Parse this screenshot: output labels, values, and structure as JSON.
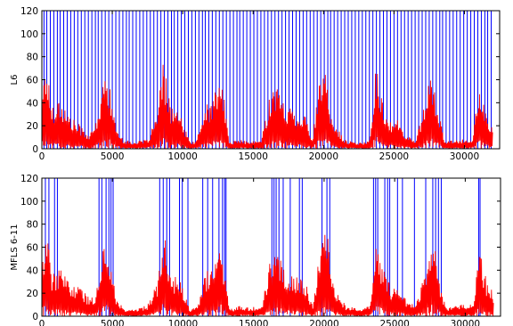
{
  "chart_data": [
    {
      "type": "line",
      "ylabel": "L6",
      "xlabel": "",
      "title": "",
      "xlim": [
        0,
        32500
      ],
      "ylim": [
        0,
        120
      ],
      "xticks": [
        0,
        5000,
        10000,
        15000,
        20000,
        25000,
        30000
      ],
      "yticks": [
        0,
        20,
        40,
        60,
        80,
        100,
        120
      ],
      "grid": false,
      "series": [
        {
          "color": "#ff0000",
          "style": "dense noisy trace",
          "points": [
            [
              0,
              50
            ],
            [
              300,
              78
            ],
            [
              700,
              38
            ],
            [
              1200,
              45
            ],
            [
              2000,
              28
            ],
            [
              2800,
              20
            ],
            [
              3400,
              12
            ],
            [
              3800,
              22
            ],
            [
              4200,
              45
            ],
            [
              4600,
              75
            ],
            [
              5200,
              22
            ],
            [
              5800,
              8
            ],
            [
              6500,
              6
            ],
            [
              7500,
              8
            ],
            [
              8200,
              30
            ],
            [
              8600,
              75
            ],
            [
              9200,
              38
            ],
            [
              9800,
              30
            ],
            [
              10500,
              6
            ],
            [
              11000,
              8
            ],
            [
              11600,
              38
            ],
            [
              12200,
              45
            ],
            [
              12700,
              68
            ],
            [
              13300,
              6
            ],
            [
              14000,
              8
            ],
            [
              14800,
              6
            ],
            [
              15600,
              8
            ],
            [
              16200,
              50
            ],
            [
              16600,
              57
            ],
            [
              17200,
              40
            ],
            [
              18000,
              35
            ],
            [
              18700,
              30
            ],
            [
              19200,
              8
            ],
            [
              19700,
              58
            ],
            [
              20200,
              68
            ],
            [
              20600,
              25
            ],
            [
              21500,
              8
            ],
            [
              22500,
              5
            ],
            [
              23300,
              8
            ],
            [
              23700,
              75
            ],
            [
              24200,
              40
            ],
            [
              24800,
              25
            ],
            [
              25300,
              25
            ],
            [
              25800,
              12
            ],
            [
              26500,
              8
            ],
            [
              27200,
              40
            ],
            [
              27700,
              72
            ],
            [
              28200,
              30
            ],
            [
              28600,
              6
            ],
            [
              29300,
              8
            ],
            [
              30000,
              8
            ],
            [
              30600,
              10
            ],
            [
              31000,
              55
            ],
            [
              31500,
              32
            ],
            [
              32000,
              20
            ]
          ]
        },
        {
          "color": "#0000ff",
          "style": "vertical event lines 0 to 120",
          "events": [
            150,
            350,
            600,
            850,
            1100,
            1300,
            1550,
            1800,
            2050,
            2300,
            2550,
            2800,
            3050,
            3300,
            3550,
            3800,
            4000,
            4250,
            4500,
            4750,
            5000,
            5250,
            5500,
            5750,
            6000,
            6200,
            6450,
            6700,
            6950,
            7200,
            7450,
            7700,
            7950,
            8200,
            8450,
            8700,
            8950,
            9200,
            9400,
            9650,
            9900,
            10150,
            10400,
            10650,
            10900,
            11150,
            11400,
            11600,
            11850,
            12100,
            12350,
            12600,
            12850,
            13100,
            13350,
            13600,
            13850,
            14050,
            14300,
            14550,
            14800,
            15050,
            15300,
            15550,
            15800,
            16050,
            16300,
            16550,
            16800,
            17050,
            17300,
            17550,
            17800,
            18050,
            18300,
            18550,
            18800,
            19050,
            19300,
            19550,
            19800,
            20050,
            20300,
            20500,
            20750,
            21000,
            21250,
            21500,
            21750,
            22000,
            22250,
            22500,
            22750,
            23000,
            23250,
            23500,
            23750,
            24000,
            24250,
            24500,
            24750,
            25000,
            25250,
            25500,
            25750,
            26000,
            26250,
            26500,
            26750,
            27000,
            27250,
            27500,
            27750,
            28000,
            28250,
            28450,
            28700,
            28950,
            29200,
            29450,
            29700,
            29950,
            30200,
            30450,
            30700,
            30950,
            31200,
            31450,
            31650,
            31900
          ]
        }
      ]
    },
    {
      "type": "line",
      "ylabel": "MFLS 6-11",
      "xlabel": "",
      "title": "",
      "xlim": [
        0,
        32500
      ],
      "ylim": [
        0,
        120
      ],
      "xticks": [
        0,
        5000,
        10000,
        15000,
        20000,
        25000,
        30000
      ],
      "yticks": [
        0,
        20,
        40,
        60,
        80,
        100,
        120
      ],
      "grid": false,
      "series": [
        {
          "color": "#ff0000",
          "style": "dense noisy trace",
          "points": [
            [
              0,
              50
            ],
            [
              300,
              80
            ],
            [
              700,
              38
            ],
            [
              1200,
              42
            ],
            [
              2000,
              30
            ],
            [
              2800,
              25
            ],
            [
              3400,
              15
            ],
            [
              3800,
              20
            ],
            [
              4200,
              50
            ],
            [
              4600,
              72
            ],
            [
              5200,
              20
            ],
            [
              5800,
              6
            ],
            [
              6500,
              6
            ],
            [
              7500,
              10
            ],
            [
              8200,
              30
            ],
            [
              8600,
              75
            ],
            [
              9200,
              38
            ],
            [
              9800,
              30
            ],
            [
              10500,
              6
            ],
            [
              11000,
              8
            ],
            [
              11600,
              38
            ],
            [
              12200,
              45
            ],
            [
              12700,
              68
            ],
            [
              13300,
              6
            ],
            [
              14000,
              10
            ],
            [
              14800,
              8
            ],
            [
              15600,
              10
            ],
            [
              16200,
              50
            ],
            [
              16600,
              63
            ],
            [
              17200,
              40
            ],
            [
              18000,
              35
            ],
            [
              18700,
              30
            ],
            [
              19200,
              8
            ],
            [
              19700,
              58
            ],
            [
              20200,
              78
            ],
            [
              20600,
              30
            ],
            [
              21500,
              10
            ],
            [
              22500,
              6
            ],
            [
              23300,
              10
            ],
            [
              23700,
              70
            ],
            [
              24200,
              40
            ],
            [
              24800,
              25
            ],
            [
              25300,
              25
            ],
            [
              25800,
              15
            ],
            [
              26500,
              10
            ],
            [
              27200,
              40
            ],
            [
              27700,
              78
            ],
            [
              28200,
              30
            ],
            [
              28600,
              8
            ],
            [
              29300,
              10
            ],
            [
              30000,
              10
            ],
            [
              30600,
              12
            ],
            [
              31000,
              60
            ],
            [
              31500,
              32
            ],
            [
              32000,
              20
            ]
          ]
        },
        {
          "color": "#0000ff",
          "style": "vertical event lines 0 to 120",
          "events": [
            250,
            500,
            900,
            1100,
            4050,
            4250,
            4550,
            4750,
            4900,
            5050,
            8350,
            8600,
            8850,
            9050,
            9750,
            9950,
            10350,
            11400,
            11750,
            12100,
            12550,
            12800,
            12950,
            13050,
            16300,
            16450,
            16600,
            16800,
            17100,
            17600,
            18250,
            18450,
            19850,
            20200,
            20400,
            23500,
            23650,
            23800,
            24300,
            24500,
            24650,
            25200,
            25550,
            26400,
            27200,
            27700,
            27900,
            28100,
            28300,
            30950,
            31050
          ]
        }
      ]
    }
  ]
}
